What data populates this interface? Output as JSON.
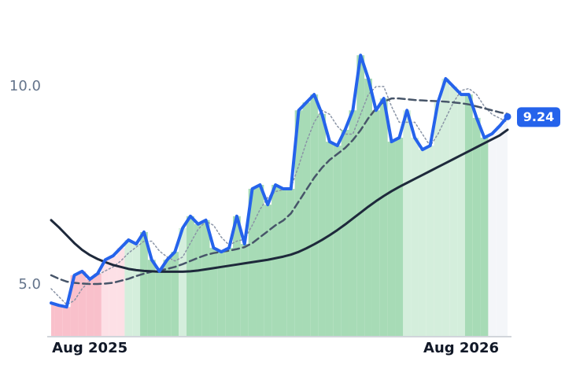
{
  "chart_data": {
    "type": "line",
    "categories": [
      null,
      null,
      null,
      null,
      null,
      "Aug 2025",
      null,
      null,
      null,
      null,
      null,
      null,
      null,
      null,
      null,
      null,
      null,
      null,
      null,
      null,
      null,
      null,
      null,
      null,
      null,
      null,
      null,
      null,
      null,
      null,
      null,
      null,
      null,
      null,
      null,
      null,
      null,
      null,
      null,
      null,
      null,
      null,
      null,
      null,
      null,
      null,
      null,
      null,
      null,
      null,
      null,
      null,
      null,
      "Aug 2026",
      null,
      null,
      null,
      null,
      null,
      null
    ],
    "series": [
      {
        "color": "#2563eb",
        "dash": "solid",
        "values": [
          4.54,
          4.48,
          4.44,
          5.24,
          5.34,
          5.14,
          5.28,
          5.63,
          5.73,
          5.93,
          6.13,
          6.03,
          6.33,
          5.63,
          5.34,
          5.63,
          5.83,
          6.43,
          6.73,
          6.53,
          6.63,
          5.93,
          5.83,
          5.93,
          6.73,
          6.03,
          7.42,
          7.52,
          7.02,
          7.52,
          7.42,
          7.42,
          9.4,
          9.6,
          9.8,
          9.31,
          8.61,
          8.51,
          8.91,
          9.4,
          10.79,
          10.2,
          9.4,
          9.7,
          8.61,
          8.71,
          9.4,
          8.71,
          8.41,
          8.51,
          9.6,
          10.2,
          10.0,
          9.8,
          9.8,
          9.21,
          8.71,
          8.81,
          9.01,
          9.24
        ]
      },
      {
        "color": "#1e293b",
        "dash": "solid",
        "values": [
          6.63,
          6.45,
          6.25,
          6.05,
          5.88,
          5.75,
          5.65,
          5.57,
          5.5,
          5.45,
          5.4,
          5.37,
          5.35,
          5.34,
          5.33,
          5.33,
          5.33,
          5.33,
          5.34,
          5.36,
          5.39,
          5.42,
          5.45,
          5.48,
          5.51,
          5.54,
          5.57,
          5.6,
          5.63,
          5.67,
          5.71,
          5.76,
          5.83,
          5.92,
          6.02,
          6.13,
          6.25,
          6.38,
          6.52,
          6.67,
          6.82,
          6.97,
          7.11,
          7.24,
          7.36,
          7.47,
          7.57,
          7.67,
          7.77,
          7.87,
          7.97,
          8.07,
          8.17,
          8.27,
          8.37,
          8.47,
          8.57,
          8.67,
          8.77,
          8.91
        ]
      },
      {
        "color": "#475569",
        "dash": "dashed",
        "values": [
          5.24,
          5.15,
          5.08,
          5.05,
          5.03,
          5.02,
          5.02,
          5.03,
          5.05,
          5.1,
          5.15,
          5.22,
          5.28,
          5.33,
          5.36,
          5.4,
          5.45,
          5.52,
          5.6,
          5.68,
          5.75,
          5.8,
          5.83,
          5.86,
          5.9,
          5.95,
          6.05,
          6.2,
          6.35,
          6.5,
          6.62,
          6.8,
          7.1,
          7.4,
          7.7,
          7.95,
          8.15,
          8.3,
          8.45,
          8.65,
          8.9,
          9.2,
          9.45,
          9.62,
          9.7,
          9.7,
          9.68,
          9.66,
          9.65,
          9.64,
          9.63,
          9.62,
          9.6,
          9.58,
          9.55,
          9.5,
          9.45,
          9.4,
          9.35,
          9.31
        ]
      },
      {
        "color": "#8a94a6",
        "dash": "dotted",
        "values": [
          4.9,
          4.7,
          4.5,
          4.6,
          4.9,
          5.1,
          5.25,
          5.35,
          5.45,
          5.6,
          5.8,
          5.95,
          6.1,
          6.1,
          5.85,
          5.7,
          5.6,
          5.7,
          6.05,
          6.4,
          6.6,
          6.5,
          6.2,
          6.0,
          6.1,
          6.15,
          6.5,
          6.9,
          7.2,
          7.35,
          7.4,
          7.45,
          8.0,
          8.6,
          9.1,
          9.4,
          9.3,
          9.0,
          8.8,
          8.8,
          9.3,
          9.8,
          10.0,
          10.0,
          9.5,
          9.1,
          9.1,
          9.1,
          8.8,
          8.5,
          8.8,
          9.2,
          9.6,
          9.9,
          9.95,
          9.8,
          9.5,
          9.3,
          9.2,
          9.1
        ]
      }
    ],
    "area_colors": [
      "#f9c0cb",
      "#f9c0cb",
      "#f9c0cb",
      "#f9c0cb",
      "#f9c0cb",
      "#f9c0cb",
      "#f9c0cb",
      "#fde0e6",
      "#fde0e6",
      "#fde0e6",
      "#d4eedc",
      "#d4eedc",
      "#a7dbb6",
      "#a7dbb6",
      "#a7dbb6",
      "#a7dbb6",
      "#a7dbb6",
      "#d4eedc",
      "#a7dbb6",
      "#a7dbb6",
      "#a7dbb6",
      "#a7dbb6",
      "#a7dbb6",
      "#a7dbb6",
      "#a7dbb6",
      "#a7dbb6",
      "#a7dbb6",
      "#a7dbb6",
      "#a7dbb6",
      "#a7dbb6",
      "#a7dbb6",
      "#a7dbb6",
      "#a7dbb6",
      "#a7dbb6",
      "#a7dbb6",
      "#a7dbb6",
      "#a7dbb6",
      "#a7dbb6",
      "#a7dbb6",
      "#a7dbb6",
      "#a7dbb6",
      "#a7dbb6",
      "#a7dbb6",
      "#a7dbb6",
      "#a7dbb6",
      "#a7dbb6",
      "#d4eedc",
      "#d4eedc",
      "#d4eedc",
      "#d4eedc",
      "#d4eedc",
      "#d4eedc",
      "#d4eedc",
      "#d4eedc",
      "#a7dbb6",
      "#a7dbb6",
      "#a7dbb6",
      "#f4f6f9",
      "#f4f6f9",
      "#f4f6f9"
    ],
    "ylim": [
      3.71,
      11.39
    ],
    "yticks": [
      {
        "value": 5,
        "label": "5.0"
      },
      {
        "value": 10,
        "label": "10.0"
      }
    ],
    "grid": false
  }
}
